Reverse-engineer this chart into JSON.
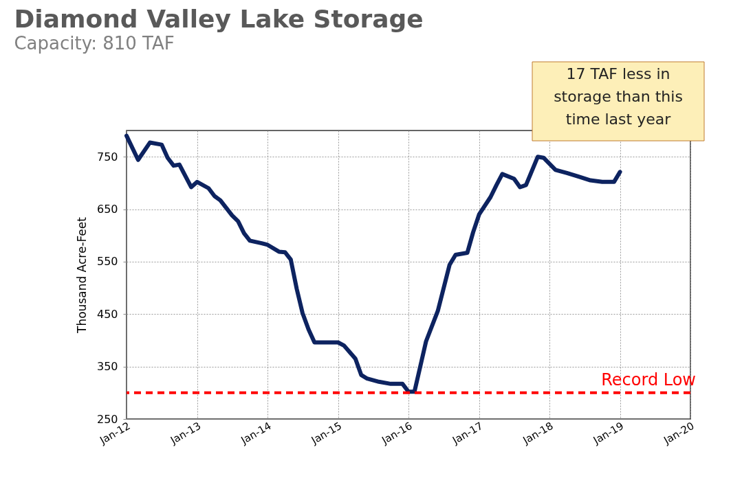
{
  "chart_data": {
    "type": "line",
    "title": "Diamond Valley Lake Storage",
    "subtitle": "Capacity: 810 TAF",
    "ylabel": "Thousand Acre-Feet",
    "annotations": [
      "17 TAF less in storage than this time last year"
    ],
    "x": [
      "2012-01",
      "2012-03",
      "2012-05",
      "2012-07",
      "2012-08",
      "2012-09",
      "2012-10",
      "2012-12",
      "2013-01",
      "2013-03",
      "2013-04",
      "2013-05",
      "2013-07",
      "2013-08",
      "2013-09",
      "2013-10",
      "2013-12",
      "2014-01",
      "2014-03",
      "2014-04",
      "2014-05",
      "2014-06",
      "2014-07",
      "2014-08",
      "2014-09",
      "2015-01",
      "2015-02",
      "2015-04",
      "2015-05",
      "2015-06",
      "2015-08",
      "2015-10",
      "2015-12",
      "2016-01",
      "2016-02",
      "2016-04",
      "2016-06",
      "2016-08",
      "2016-09",
      "2016-11",
      "2016-12",
      "2017-01",
      "2017-03",
      "2017-04",
      "2017-05",
      "2017-07",
      "2017-08",
      "2017-09",
      "2017-11",
      "2017-12",
      "2018-02",
      "2018-04",
      "2018-06",
      "2018-08",
      "2018-10",
      "2018-12",
      "2019-01"
    ],
    "series": [
      {
        "color": "#0d2360",
        "values": [
          790,
          744,
          777,
          773,
          748,
          733,
          735,
          692,
          702,
          690,
          675,
          667,
          638,
          627,
          604,
          590,
          585,
          582,
          569,
          568,
          554,
          498,
          452,
          421,
          396,
          396,
          390,
          365,
          334,
          327,
          321,
          317,
          317,
          302,
          302,
          398,
          456,
          544,
          563,
          567,
          606,
          640,
          673,
          696,
          717,
          708,
          692,
          696,
          750,
          748,
          725,
          719,
          712,
          705,
          702,
          702,
          721
        ]
      }
    ],
    "xlim": [
      "2012-01",
      "2020-01"
    ],
    "xticks": [
      {
        "value": "2012-01",
        "label": "Jan-12"
      },
      {
        "value": "2013-01",
        "label": "Jan-13"
      },
      {
        "value": "2014-01",
        "label": "Jan-14"
      },
      {
        "value": "2015-01",
        "label": "Jan-15"
      },
      {
        "value": "2016-01",
        "label": "Jan-16"
      },
      {
        "value": "2017-01",
        "label": "Jan-17"
      },
      {
        "value": "2018-01",
        "label": "Jan-18"
      },
      {
        "value": "2019-01",
        "label": "Jan-19"
      },
      {
        "value": "2020-01",
        "label": "Jan-20"
      }
    ],
    "ylim": [
      250,
      800
    ],
    "yticks": [
      250,
      350,
      450,
      550,
      650,
      750
    ],
    "ref_lines": [
      {
        "axis": "y",
        "value": 300,
        "label": "Record Low",
        "color": "#ff0000",
        "line_style": "dashed"
      }
    ],
    "grid": true,
    "marker": "none",
    "line_style": "solid"
  }
}
